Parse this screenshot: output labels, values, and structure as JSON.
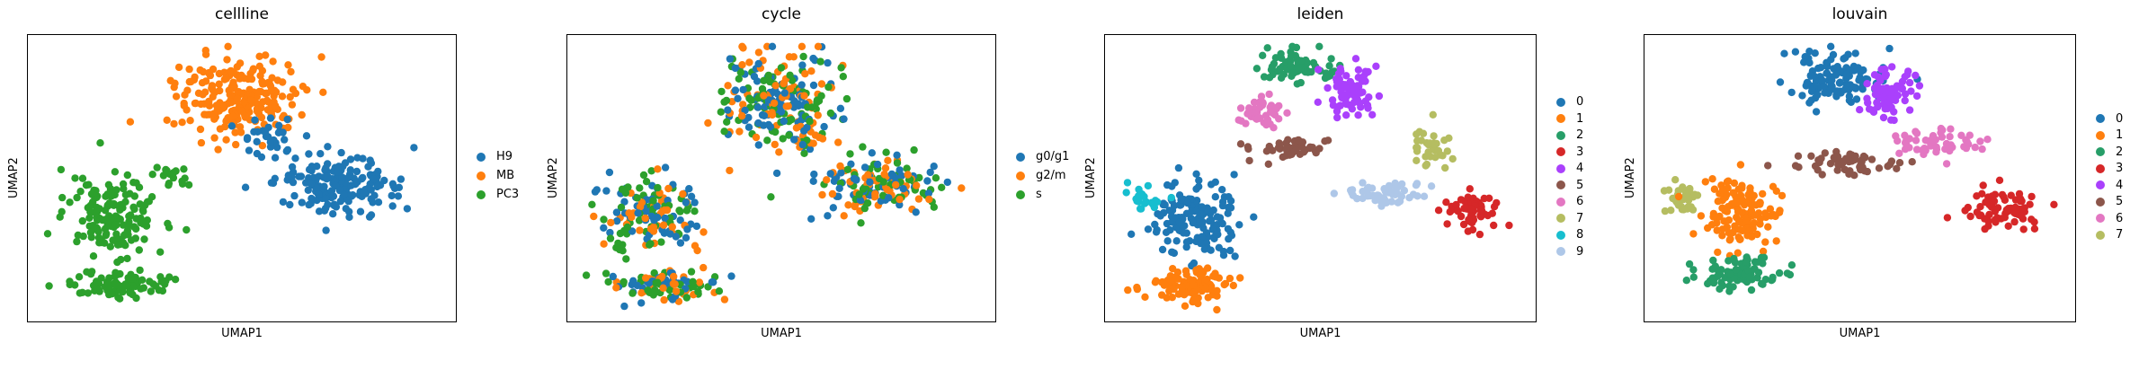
{
  "chart_data": [
    {
      "type": "scatter",
      "title": "cellline",
      "xlabel": "UMAP1",
      "ylabel": "UMAP2",
      "grid": false,
      "legend_position": "right",
      "categories": [
        {
          "name": "H9",
          "color": "#1f77b4"
        },
        {
          "name": "MB",
          "color": "#ff7f0e"
        },
        {
          "name": "PC3",
          "color": "#2ca02c"
        }
      ],
      "clusters": [
        {
          "category": "MB",
          "cx": 0.49,
          "cy": 0.22,
          "rx": 0.16,
          "ry": 0.16,
          "n": 230
        },
        {
          "category": "H9",
          "cx": 0.73,
          "cy": 0.52,
          "rx": 0.17,
          "ry": 0.11,
          "n": 170
        },
        {
          "category": "H9",
          "cx": 0.56,
          "cy": 0.35,
          "rx": 0.07,
          "ry": 0.08,
          "n": 30
        },
        {
          "category": "PC3",
          "cx": 0.2,
          "cy": 0.63,
          "rx": 0.12,
          "ry": 0.14,
          "n": 160
        },
        {
          "category": "PC3",
          "cx": 0.22,
          "cy": 0.87,
          "rx": 0.13,
          "ry": 0.06,
          "n": 100
        },
        {
          "category": "PC3",
          "cx": 0.34,
          "cy": 0.5,
          "rx": 0.05,
          "ry": 0.05,
          "n": 15
        }
      ]
    },
    {
      "type": "scatter",
      "title": "cycle",
      "xlabel": "UMAP1",
      "ylabel": "UMAP2",
      "grid": false,
      "legend_position": "right",
      "categories": [
        {
          "name": "g0/g1",
          "color": "#1f77b4"
        },
        {
          "name": "g2/m",
          "color": "#ff7f0e"
        },
        {
          "name": "s",
          "color": "#2ca02c"
        }
      ],
      "clusters": [
        {
          "category": "mix",
          "cx": 0.49,
          "cy": 0.22,
          "rx": 0.16,
          "ry": 0.16,
          "n": 230
        },
        {
          "category": "mix",
          "cx": 0.73,
          "cy": 0.52,
          "rx": 0.17,
          "ry": 0.11,
          "n": 170
        },
        {
          "category": "mix",
          "cx": 0.56,
          "cy": 0.35,
          "rx": 0.07,
          "ry": 0.08,
          "n": 30
        },
        {
          "category": "mix",
          "cx": 0.2,
          "cy": 0.63,
          "rx": 0.12,
          "ry": 0.14,
          "n": 160
        },
        {
          "category": "mix",
          "cx": 0.22,
          "cy": 0.87,
          "rx": 0.13,
          "ry": 0.06,
          "n": 100
        }
      ]
    },
    {
      "type": "scatter",
      "title": "leiden",
      "xlabel": "UMAP1",
      "ylabel": "UMAP2",
      "grid": false,
      "legend_position": "right",
      "categories": [
        {
          "name": "0",
          "color": "#1f77b4"
        },
        {
          "name": "1",
          "color": "#ff7f0e"
        },
        {
          "name": "2",
          "color": "#279e68"
        },
        {
          "name": "3",
          "color": "#d62728"
        },
        {
          "name": "4",
          "color": "#aa40fc"
        },
        {
          "name": "5",
          "color": "#8c564b"
        },
        {
          "name": "6",
          "color": "#e377c2"
        },
        {
          "name": "7",
          "color": "#b5bd61"
        },
        {
          "name": "8",
          "color": "#17becf"
        },
        {
          "name": "9",
          "color": "#aec7e8"
        }
      ],
      "clusters": [
        {
          "category": "2",
          "cx": 0.45,
          "cy": 0.11,
          "rx": 0.1,
          "ry": 0.06,
          "n": 70
        },
        {
          "category": "4",
          "cx": 0.57,
          "cy": 0.2,
          "rx": 0.07,
          "ry": 0.1,
          "n": 70
        },
        {
          "category": "6",
          "cx": 0.37,
          "cy": 0.27,
          "rx": 0.07,
          "ry": 0.07,
          "n": 45
        },
        {
          "category": "5",
          "cx": 0.43,
          "cy": 0.4,
          "rx": 0.1,
          "ry": 0.04,
          "n": 45
        },
        {
          "category": "7",
          "cx": 0.76,
          "cy": 0.4,
          "rx": 0.05,
          "ry": 0.08,
          "n": 35
        },
        {
          "category": "3",
          "cx": 0.86,
          "cy": 0.61,
          "rx": 0.07,
          "ry": 0.07,
          "n": 60
        },
        {
          "category": "9",
          "cx": 0.65,
          "cy": 0.55,
          "rx": 0.11,
          "ry": 0.05,
          "n": 55
        },
        {
          "category": "0",
          "cx": 0.21,
          "cy": 0.64,
          "rx": 0.11,
          "ry": 0.14,
          "n": 150
        },
        {
          "category": "8",
          "cx": 0.09,
          "cy": 0.56,
          "rx": 0.04,
          "ry": 0.05,
          "n": 25
        },
        {
          "category": "1",
          "cx": 0.2,
          "cy": 0.87,
          "rx": 0.11,
          "ry": 0.06,
          "n": 100
        }
      ]
    },
    {
      "type": "scatter",
      "title": "louvain",
      "xlabel": "UMAP1",
      "ylabel": "UMAP2",
      "grid": false,
      "legend_position": "right",
      "categories": [
        {
          "name": "0",
          "color": "#1f77b4"
        },
        {
          "name": "1",
          "color": "#ff7f0e"
        },
        {
          "name": "2",
          "color": "#279e68"
        },
        {
          "name": "3",
          "color": "#d62728"
        },
        {
          "name": "4",
          "color": "#aa40fc"
        },
        {
          "name": "5",
          "color": "#8c564b"
        },
        {
          "name": "6",
          "color": "#e377c2"
        },
        {
          "name": "7",
          "color": "#b5bd61"
        }
      ],
      "clusters": [
        {
          "category": "0",
          "cx": 0.44,
          "cy": 0.15,
          "rx": 0.12,
          "ry": 0.11,
          "n": 120
        },
        {
          "category": "4",
          "cx": 0.57,
          "cy": 0.2,
          "rx": 0.07,
          "ry": 0.09,
          "n": 70
        },
        {
          "category": "5",
          "cx": 0.48,
          "cy": 0.45,
          "rx": 0.14,
          "ry": 0.05,
          "n": 55
        },
        {
          "category": "6",
          "cx": 0.68,
          "cy": 0.38,
          "rx": 0.12,
          "ry": 0.06,
          "n": 55
        },
        {
          "category": "3",
          "cx": 0.84,
          "cy": 0.6,
          "rx": 0.1,
          "ry": 0.07,
          "n": 70
        },
        {
          "category": "7",
          "cx": 0.09,
          "cy": 0.57,
          "rx": 0.05,
          "ry": 0.06,
          "n": 35
        },
        {
          "category": "1",
          "cx": 0.22,
          "cy": 0.62,
          "rx": 0.1,
          "ry": 0.13,
          "n": 130
        },
        {
          "category": "2",
          "cx": 0.22,
          "cy": 0.84,
          "rx": 0.1,
          "ry": 0.07,
          "n": 80
        }
      ]
    }
  ]
}
